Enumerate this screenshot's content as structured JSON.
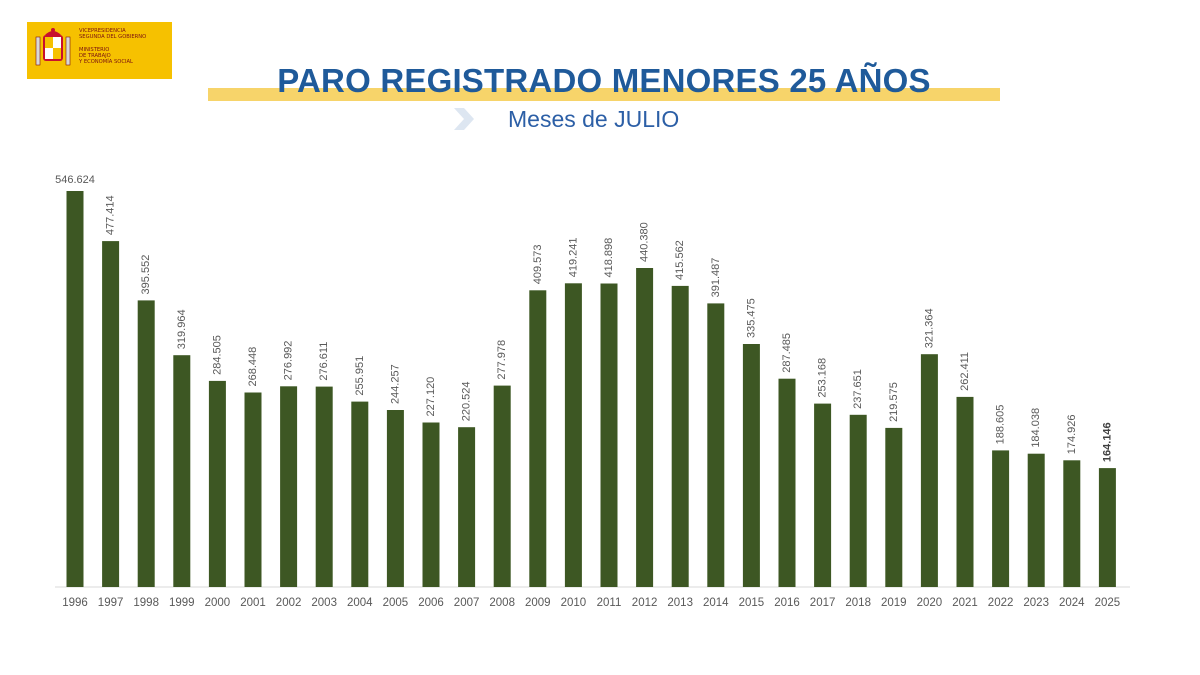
{
  "header": {
    "org_line1": "VICEPRESIDENCIA\nSEGUNDA DEL GOBIERNO",
    "org_line2": "MINISTERIO\nDE TRABAJO\nY ECONOMÍA SOCIAL",
    "logo_color": "#f6c100"
  },
  "chart_data": {
    "type": "bar",
    "title": "PARO REGISTRADO MENORES 25 AÑOS",
    "subtitle": "Meses de JULIO",
    "categories": [
      "1996",
      "1997",
      "1998",
      "1999",
      "2000",
      "2001",
      "2002",
      "2003",
      "2004",
      "2005",
      "2006",
      "2007",
      "2008",
      "2009",
      "2010",
      "2011",
      "2012",
      "2013",
      "2014",
      "2015",
      "2016",
      "2017",
      "2018",
      "2019",
      "2020",
      "2021",
      "2022",
      "2023",
      "2024",
      "2025"
    ],
    "values": [
      546624,
      477414,
      395552,
      319964,
      284505,
      268448,
      276992,
      276611,
      255951,
      244257,
      227120,
      220524,
      277978,
      409573,
      419241,
      418898,
      440380,
      415562,
      391487,
      335475,
      287485,
      253168,
      237651,
      219575,
      321364,
      262411,
      188605,
      184038,
      174926,
      164146
    ],
    "labels": [
      "546.624",
      "477.414",
      "395.552",
      "319.964",
      "284.505",
      "268.448",
      "276.992",
      "276.611",
      "255.951",
      "244.257",
      "227.120",
      "220.524",
      "277.978",
      "409.573",
      "419.241",
      "418.898",
      "440.380",
      "415.562",
      "391.487",
      "335.475",
      "287.485",
      "253.168",
      "237.651",
      "219.575",
      "321.364",
      "262.411",
      "188.605",
      "184.038",
      "174.926",
      "164.146"
    ],
    "ylim": [
      0,
      546624
    ],
    "bar_color": "#3d5723",
    "title_color": "#1f5a9a",
    "highlight_color": "#f7d46a",
    "grid": false,
    "legend": "none"
  }
}
